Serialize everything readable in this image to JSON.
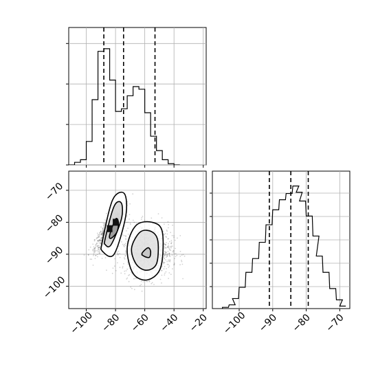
{
  "chart_data": [
    {
      "type": "histogram",
      "panel": "top-left marginal of x",
      "xlim": [
        -112,
        -18
      ],
      "x_ticks": [
        -100,
        -80,
        -60,
        -40,
        -20
      ],
      "y_tick_count": 4,
      "grid": true,
      "bins": [
        [
          -112,
          0
        ],
        [
          -108,
          0.02
        ],
        [
          -104,
          0.04
        ],
        [
          -100,
          0.18
        ],
        [
          -96,
          0.5
        ],
        [
          -92,
          0.87
        ],
        [
          -88,
          0.89
        ],
        [
          -84,
          0.65
        ],
        [
          -80,
          0.41
        ],
        [
          -76,
          0.43
        ],
        [
          -72,
          0.53
        ],
        [
          -68,
          0.6
        ],
        [
          -64,
          0.58
        ],
        [
          -60,
          0.4
        ],
        [
          -56,
          0.22
        ],
        [
          -52,
          0.11
        ],
        [
          -48,
          0.04
        ],
        [
          -44,
          0.01
        ],
        [
          -40,
          0
        ]
      ],
      "bin_width": 4,
      "ymax": 1.0,
      "quantile_lines": [
        -88,
        -74.5,
        -53
      ]
    },
    {
      "type": "histogram",
      "panel": "bottom-right marginal of y",
      "xlim": [
        -108,
        -67
      ],
      "x_ticks": [
        -100,
        -90,
        -80,
        -70
      ],
      "x_tick_labels": [
        "−100",
        "−90",
        "−80",
        "−70"
      ],
      "y_tick_count": 5,
      "grid": true,
      "bins": [
        [
          -105,
          0.01
        ],
        [
          -103,
          0.03
        ],
        [
          -102,
          0.08
        ],
        [
          -100,
          0.17
        ],
        [
          -98,
          0.29
        ],
        [
          -96,
          0.4
        ],
        [
          -94,
          0.53
        ],
        [
          -92,
          0.67
        ],
        [
          -90,
          0.79
        ],
        [
          -88,
          0.87
        ],
        [
          -86,
          0.92
        ],
        [
          -84,
          0.98
        ],
        [
          -83,
          0.93
        ],
        [
          -82,
          0.86
        ],
        [
          -80,
          0.74
        ],
        [
          -78,
          0.58
        ],
        [
          -77,
          0.42
        ],
        [
          -75,
          0.29
        ],
        [
          -73,
          0.16
        ],
        [
          -71,
          0.07
        ],
        [
          -70,
          0.02
        ]
      ],
      "bin_width": 1.8,
      "ymax": 1.0,
      "quantile_lines": [
        -91,
        -84.6,
        -79.4
      ]
    },
    {
      "type": "scatter",
      "panel": "bottom-left 2D density",
      "xlim": [
        -112,
        -18
      ],
      "ylim": [
        -107,
        -64
      ],
      "x_ticks": [
        -100,
        -80,
        -60,
        -40,
        -20
      ],
      "x_tick_labels": [
        "−100",
        "−80",
        "−60",
        "−40",
        "−20"
      ],
      "y_ticks": [
        -100,
        -90,
        -80,
        -70
      ],
      "y_tick_labels": [
        "−100",
        "−90",
        "−80",
        "−70"
      ],
      "grid": true,
      "clusters": [
        {
          "center": [
            -84,
            -82
          ],
          "sd": [
            5,
            3.5
          ],
          "corr": 0.85
        },
        {
          "center": [
            -58,
            -89
          ],
          "sd": [
            8.5,
            4
          ],
          "corr": 0.0
        }
      ],
      "contours": [
        {
          "points": [
            [
              -89,
              -86
            ],
            [
              -82,
              -73
            ],
            [
              -74,
              -71
            ],
            [
              -73,
              -78
            ],
            [
              -81,
              -90
            ],
            [
              -89,
              -89
            ]
          ]
        },
        {
          "points": [
            [
              -87,
              -85
            ],
            [
              -81,
              -75
            ],
            [
              -76,
              -74
            ],
            [
              -76,
              -79
            ],
            [
              -83,
              -87
            ],
            [
              -87,
              -87
            ]
          ]
        },
        {
          "points": [
            [
              -84,
              -84
            ],
            [
              -80,
              -79
            ],
            [
              -78,
              -80
            ],
            [
              -79,
              -83
            ],
            [
              -83,
              -85
            ]
          ]
        },
        {
          "points": [
            [
              -72,
              -88
            ],
            [
              -66,
              -81
            ],
            [
              -55,
              -80
            ],
            [
              -48,
              -83
            ],
            [
              -49,
              -94
            ],
            [
              -58,
              -98
            ],
            [
              -68,
              -96
            ]
          ]
        },
        {
          "points": [
            [
              -69,
              -88
            ],
            [
              -63,
              -83
            ],
            [
              -55,
              -83
            ],
            [
              -51,
              -86
            ],
            [
              -52,
              -93
            ],
            [
              -59,
              -95
            ],
            [
              -66,
              -93
            ]
          ]
        },
        {
          "points": [
            [
              -62,
              -90
            ],
            [
              -58,
              -88
            ],
            [
              -56,
              -89
            ],
            [
              -57,
              -91
            ]
          ]
        }
      ]
    }
  ]
}
